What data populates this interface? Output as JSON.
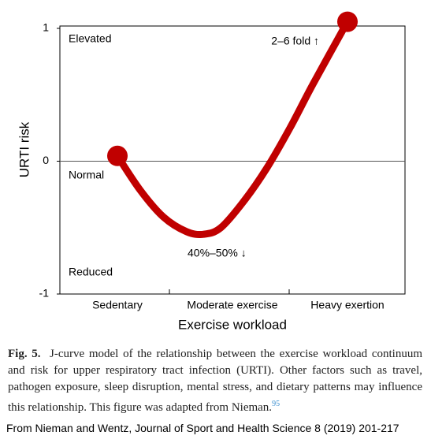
{
  "chart_data": {
    "type": "line",
    "y_label": "URTI risk",
    "x_label": "Exercise workload",
    "x": [
      0,
      0.2,
      0.4,
      0.6,
      0.75,
      0.9,
      1.1,
      1.3,
      1.5,
      1.7,
      2.0
    ],
    "series": [
      {
        "color": "#c00000",
        "values": [
          0.04,
          -0.22,
          -0.42,
          -0.53,
          -0.55,
          -0.5,
          -0.3,
          -0.05,
          0.25,
          0.58,
          1.05
        ]
      }
    ],
    "xlim": [
      -0.5,
      2.5
    ],
    "xticks": [
      {
        "value": 0,
        "label": "Sedentary"
      },
      {
        "value": 1,
        "label": "Moderate exercise"
      },
      {
        "value": 2,
        "label": "Heavy exertion"
      }
    ],
    "ylim": [
      -1,
      1
    ],
    "yticks": [
      -1,
      0,
      1
    ],
    "zero_line": true,
    "annotations": [
      "Elevated",
      "Normal",
      "Reduced",
      "2–6 fold ↑",
      "40%–50% ↓"
    ]
  },
  "caption": {
    "label": "Fig. 5.",
    "text": "J-curve model of the relationship between the exercise workload continuum and risk for upper respiratory tract infection (URTI). Other factors such as travel, pathogen exposure, sleep disruption, mental stress, and dietary patterns may influence this relationship. This figure was adapted from Nieman.",
    "ref": "95"
  },
  "source": "From Nieman and Wentz, Journal of Sport and Health Science 8 (2019) 201-217"
}
